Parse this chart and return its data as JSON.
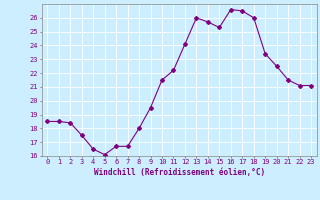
{
  "x": [
    0,
    1,
    2,
    3,
    4,
    5,
    6,
    7,
    8,
    9,
    10,
    11,
    12,
    13,
    14,
    15,
    16,
    17,
    18,
    19,
    20,
    21,
    22,
    23
  ],
  "y": [
    18.5,
    18.5,
    18.4,
    17.5,
    16.5,
    16.1,
    16.7,
    16.7,
    18.0,
    19.5,
    21.5,
    22.2,
    24.1,
    26.0,
    25.7,
    25.3,
    26.6,
    26.5,
    26.0,
    23.4,
    22.5,
    21.5,
    21.1,
    21.1
  ],
  "line_color": "#800080",
  "marker": "D",
  "markersize": 2,
  "linewidth": 0.8,
  "bg_color": "#cceeff",
  "grid_color": "#ffffff",
  "xlabel": "Windchill (Refroidissement éolien,°C)",
  "xlabel_color": "#800080",
  "tick_color": "#800080",
  "label_fontsize": 5,
  "xlabel_fontsize": 5.5,
  "ylim": [
    16,
    27
  ],
  "xlim": [
    -0.5,
    23.5
  ],
  "yticks": [
    16,
    17,
    18,
    19,
    20,
    21,
    22,
    23,
    24,
    25,
    26
  ],
  "xticks": [
    0,
    1,
    2,
    3,
    4,
    5,
    6,
    7,
    8,
    9,
    10,
    11,
    12,
    13,
    14,
    15,
    16,
    17,
    18,
    19,
    20,
    21,
    22,
    23
  ]
}
